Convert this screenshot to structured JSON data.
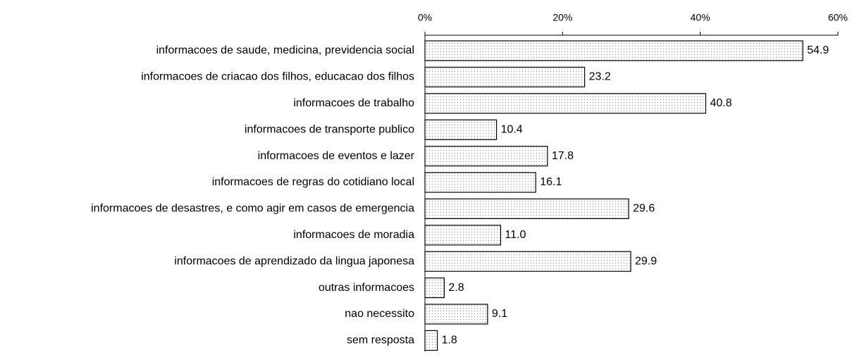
{
  "chart_data": {
    "type": "barh",
    "categories": [
      "informacoes de saude, medicina, previdencia social",
      "informacoes de criacao dos filhos, educacao dos filhos",
      "informacoes de trabalho",
      "informacoes de transporte publico",
      "informacoes de eventos e lazer",
      "informacoes de regras do cotidiano local",
      "informacoes de desastres, e como agir em casos de emergencia",
      "informacoes de moradia",
      "informacoes de aprendizado da lingua japonesa",
      "outras informacoes",
      "nao necessito",
      "sem resposta"
    ],
    "values": [
      54.9,
      23.2,
      40.8,
      10.4,
      17.8,
      16.1,
      29.6,
      11.0,
      29.9,
      2.8,
      9.1,
      1.8
    ],
    "value_labels": [
      "54.9",
      "23.2",
      "40.8",
      "10.4",
      "17.8",
      "16.1",
      "29.6",
      "11.0",
      "29.9",
      "2.8",
      "9.1",
      "1.8"
    ],
    "xlim": [
      0,
      60
    ],
    "xticks": [
      {
        "value": 0,
        "label": "0%"
      },
      {
        "value": 20,
        "label": "20%"
      },
      {
        "value": 40,
        "label": "40%"
      },
      {
        "value": 60,
        "label": "60%"
      }
    ]
  }
}
